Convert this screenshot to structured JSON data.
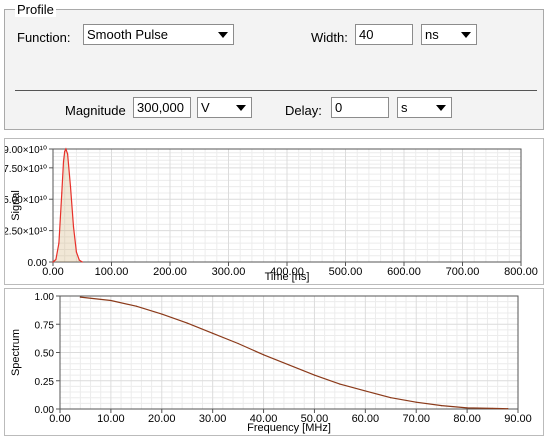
{
  "profile": {
    "legend": "Profile",
    "function_label": "Function:",
    "function_value": "Smooth Pulse",
    "width_label": "Width:",
    "width_value": "40",
    "width_unit": "ns",
    "magnitude_label": "Magnitude",
    "magnitude_value": "300,000",
    "magnitude_unit": "V",
    "delay_label": "Delay:",
    "delay_value": "0",
    "delay_unit": "s"
  },
  "colors": {
    "signal_line": "#e8302a",
    "signal_fill": "#c9a05a",
    "spectrum_line": "#8b3a1a",
    "grid": "#dcdcdc",
    "axis": "#555555"
  },
  "chart_data": [
    {
      "type": "line",
      "title": "",
      "xlabel": "Time [ns]",
      "ylabel": "Signal",
      "xlim": [
        0,
        800
      ],
      "ylim": [
        0,
        90000000000
      ],
      "x_ticks": [
        0,
        100,
        200,
        300,
        400,
        500,
        600,
        700,
        800
      ],
      "x_tick_labels": [
        "0.00",
        "100.00",
        "200.00",
        "300.00",
        "400.00",
        "500.00",
        "600.00",
        "700.00",
        "800.00"
      ],
      "y_ticks": [
        0,
        25000000000,
        50000000000,
        75000000000,
        90000000000
      ],
      "y_tick_labels": [
        "0.00",
        "2.50×10¹⁰",
        "5.00×10¹⁰",
        "7.50×10¹⁰",
        "9.00×10¹⁰"
      ],
      "grid": true,
      "series": [
        {
          "x": [
            0,
            5,
            10,
            15,
            18,
            20,
            22,
            25,
            30,
            35,
            40,
            45,
            50
          ],
          "y": [
            0,
            2000000000,
            15000000000,
            55000000000,
            80000000000,
            88000000000,
            90000000000,
            86000000000,
            60000000000,
            28000000000,
            8000000000,
            1500000000,
            0
          ]
        }
      ]
    },
    {
      "type": "line",
      "title": "",
      "xlabel": "Frequency [MHz]",
      "ylabel": "Spectrum",
      "xlim": [
        0,
        90
      ],
      "ylim": [
        0,
        1
      ],
      "x_ticks": [
        0,
        10,
        20,
        30,
        40,
        50,
        60,
        70,
        80,
        90
      ],
      "x_tick_labels": [
        "0.00",
        "10.00",
        "20.00",
        "30.00",
        "40.00",
        "50.00",
        "60.00",
        "70.00",
        "80.00",
        "90.00"
      ],
      "y_ticks": [
        0,
        0.25,
        0.5,
        0.75,
        1
      ],
      "y_tick_labels": [
        "0.00",
        "0.25",
        "0.50",
        "0.75",
        "1.00"
      ],
      "grid": true,
      "series": [
        {
          "x": [
            4,
            10,
            15,
            20,
            25,
            30,
            35,
            40,
            45,
            50,
            55,
            60,
            65,
            70,
            75,
            80,
            85,
            88
          ],
          "y": [
            0.99,
            0.96,
            0.91,
            0.84,
            0.76,
            0.67,
            0.58,
            0.48,
            0.39,
            0.3,
            0.22,
            0.16,
            0.1,
            0.06,
            0.03,
            0.01,
            0.005,
            0.003
          ]
        }
      ]
    }
  ]
}
